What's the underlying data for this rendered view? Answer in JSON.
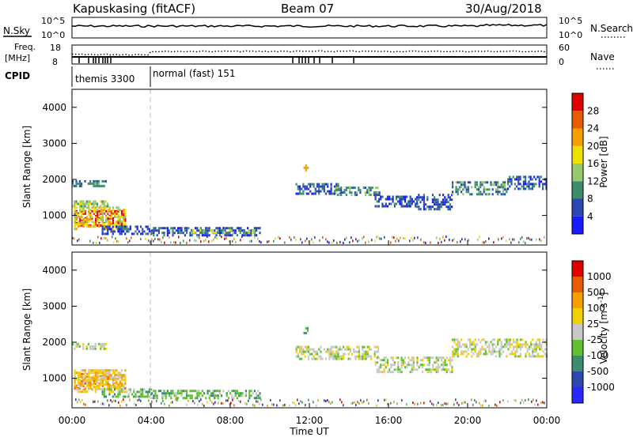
{
  "header": {
    "station": "Kapuskasing (fitACF)",
    "beam": "Beam 07",
    "date": "30/Aug/2018"
  },
  "strips": {
    "nsky": {
      "label": "N.Sky",
      "left_ticks": [
        "10^5",
        "10^0"
      ],
      "right_ticks": [
        "10^5",
        "10^0"
      ],
      "right_label": "N.Search"
    },
    "freq": {
      "label_line1": "Freq.",
      "label_line2": "[MHz]",
      "left_ticks": [
        "18",
        "8"
      ],
      "right_ticks": [
        "60",
        "0"
      ],
      "right_label": "Nave"
    },
    "cpid": {
      "label": "CPID",
      "modes": [
        "themis 3300",
        "normal (fast) 151"
      ]
    }
  },
  "axes": {
    "x_label": "Time UT",
    "x_ticks": [
      "00:00",
      "04:00",
      "08:00",
      "12:00",
      "16:00",
      "20:00",
      "00:00"
    ],
    "y_label": "Slant Range [km]",
    "y_ticks": [
      "4000",
      "3000",
      "2000",
      "1000"
    ]
  },
  "colorbars": {
    "power": {
      "label": "Power [dB]",
      "ticks": [
        "28",
        "24",
        "20",
        "16",
        "12",
        "8",
        "4"
      ],
      "colors": [
        "#1a1aff",
        "#2a48b0",
        "#3c8c6e",
        "#96c86e",
        "#f0e000",
        "#f5a000",
        "#e85a00",
        "#e00000"
      ]
    },
    "velocity": {
      "label": "Velocity [m s",
      "label_sup": "-1",
      "label_end": "]",
      "ticks": [
        "1000",
        "500",
        "100",
        "25",
        "-25",
        "-100",
        "-500",
        "-1000"
      ],
      "colors": [
        "#2828ff",
        "#2a48b0",
        "#3c8c6e",
        "#60c030",
        "#c8c8c8",
        "#f0d000",
        "#f5a000",
        "#e85a00",
        "#e00000"
      ]
    }
  },
  "chart_data": {
    "type": "heatmap",
    "x_range_hours": [
      0,
      24
    ],
    "y_range_km": [
      180,
      4500
    ],
    "mode_change_hour": 4.0,
    "power_blobs": [
      {
        "t0": 0.0,
        "t1": 1.7,
        "r0": 1800,
        "r1": 1980,
        "level": 2
      },
      {
        "t0": 0.1,
        "t1": 2.7,
        "r0": 700,
        "r1": 1150,
        "level": 7
      },
      {
        "t0": 0.1,
        "t1": 2.7,
        "r0": 600,
        "r1": 1250,
        "level": 4
      },
      {
        "t0": 0.0,
        "t1": 1.8,
        "r0": 1250,
        "r1": 1420,
        "level": 3
      },
      {
        "t0": 1.5,
        "t1": 4.0,
        "r0": 480,
        "r1": 720,
        "level": 1
      },
      {
        "t0": 4.0,
        "t1": 9.5,
        "r0": 480,
        "r1": 680,
        "level": 1
      },
      {
        "t0": 6.0,
        "t1": 9.2,
        "r0": 520,
        "r1": 620,
        "level": 3
      },
      {
        "t0": 11.3,
        "t1": 13.5,
        "r0": 1600,
        "r1": 1900,
        "level": 1
      },
      {
        "t0": 13.3,
        "t1": 15.5,
        "r0": 1550,
        "r1": 1800,
        "level": 2
      },
      {
        "t0": 15.3,
        "t1": 17.5,
        "r0": 1250,
        "r1": 1550,
        "level": 1
      },
      {
        "t0": 17.4,
        "t1": 19.2,
        "r0": 1200,
        "r1": 1600,
        "level": 1
      },
      {
        "t0": 19.2,
        "t1": 22.0,
        "r0": 1600,
        "r1": 1950,
        "level": 2
      },
      {
        "t0": 22.0,
        "t1": 24.0,
        "r0": 1750,
        "r1": 2100,
        "level": 1
      },
      {
        "t0": 11.7,
        "t1": 11.9,
        "r0": 2280,
        "r1": 2420,
        "level": 5
      }
    ],
    "velocity_blobs": [
      {
        "t0": 0.0,
        "t1": 1.7,
        "r0": 1800,
        "r1": 1980,
        "level": 4
      },
      {
        "t0": 0.1,
        "t1": 2.7,
        "r0": 700,
        "r1": 1150,
        "level": 6
      },
      {
        "t0": 0.1,
        "t1": 2.7,
        "r0": 600,
        "r1": 1250,
        "level": 5
      },
      {
        "t0": 1.5,
        "t1": 4.0,
        "r0": 480,
        "r1": 720,
        "level": 3
      },
      {
        "t0": 4.0,
        "t1": 9.5,
        "r0": 480,
        "r1": 680,
        "level": 3
      },
      {
        "t0": 11.3,
        "t1": 15.5,
        "r0": 1550,
        "r1": 1900,
        "level": 4
      },
      {
        "t0": 15.3,
        "t1": 19.2,
        "r0": 1200,
        "r1": 1600,
        "level": 4
      },
      {
        "t0": 19.2,
        "t1": 24.0,
        "r0": 1600,
        "r1": 2100,
        "level": 4
      },
      {
        "t0": 11.7,
        "t1": 11.9,
        "r0": 2280,
        "r1": 2420,
        "level": 3
      }
    ]
  }
}
